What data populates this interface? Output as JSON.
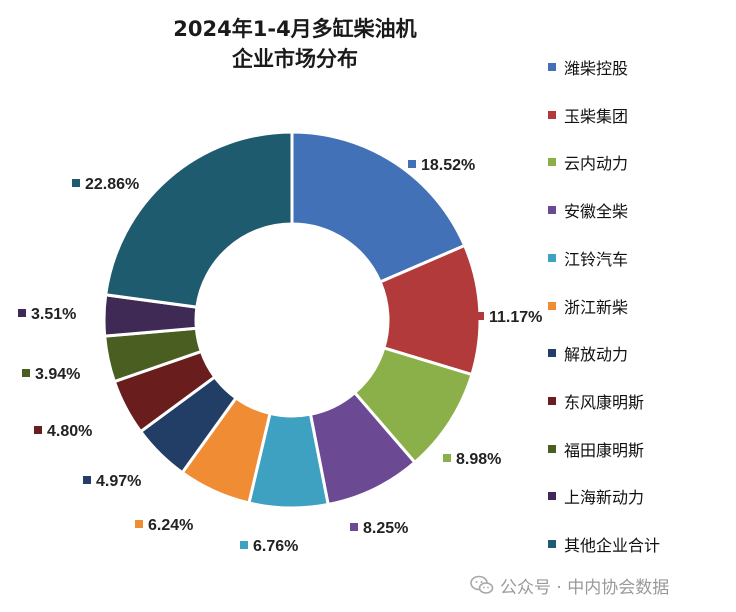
{
  "chart_data": {
    "type": "pie",
    "donut": true,
    "title": [
      "2024年1-4月多缸柴油机",
      "企业市场分布"
    ],
    "legend_position": "right",
    "slices": [
      {
        "name": "潍柴控股",
        "value": 18.52,
        "label": "18.52%",
        "color": "#4271b7"
      },
      {
        "name": "玉柴集团",
        "value": 11.17,
        "label": "11.17%",
        "color": "#b23a3a"
      },
      {
        "name": "云内动力",
        "value": 8.98,
        "label": "8.98%",
        "color": "#8bb04a"
      },
      {
        "name": "安徽全柴",
        "value": 8.25,
        "label": "8.25%",
        "color": "#6b4a93"
      },
      {
        "name": "江铃汽车",
        "value": 6.76,
        "label": "6.76%",
        "color": "#3fa1c2"
      },
      {
        "name": "浙江新柴",
        "value": 6.24,
        "label": "6.24%",
        "color": "#ef8c34"
      },
      {
        "name": "解放动力",
        "value": 4.97,
        "label": "4.97%",
        "color": "#233e66"
      },
      {
        "name": "东风康明斯",
        "value": 4.8,
        "label": "4.80%",
        "color": "#6a1d1d"
      },
      {
        "name": "福田康明斯",
        "value": 3.94,
        "label": "3.94%",
        "color": "#4a5e21"
      },
      {
        "name": "上海新动力",
        "value": 3.51,
        "label": "3.51%",
        "color": "#3e2a55"
      },
      {
        "name": "其他企业合计",
        "value": 22.86,
        "label": "22.86%",
        "color": "#1f5b6e"
      }
    ]
  },
  "watermark": {
    "text": "公众号 · 中内协会数据",
    "icon": "wechat-icon"
  }
}
